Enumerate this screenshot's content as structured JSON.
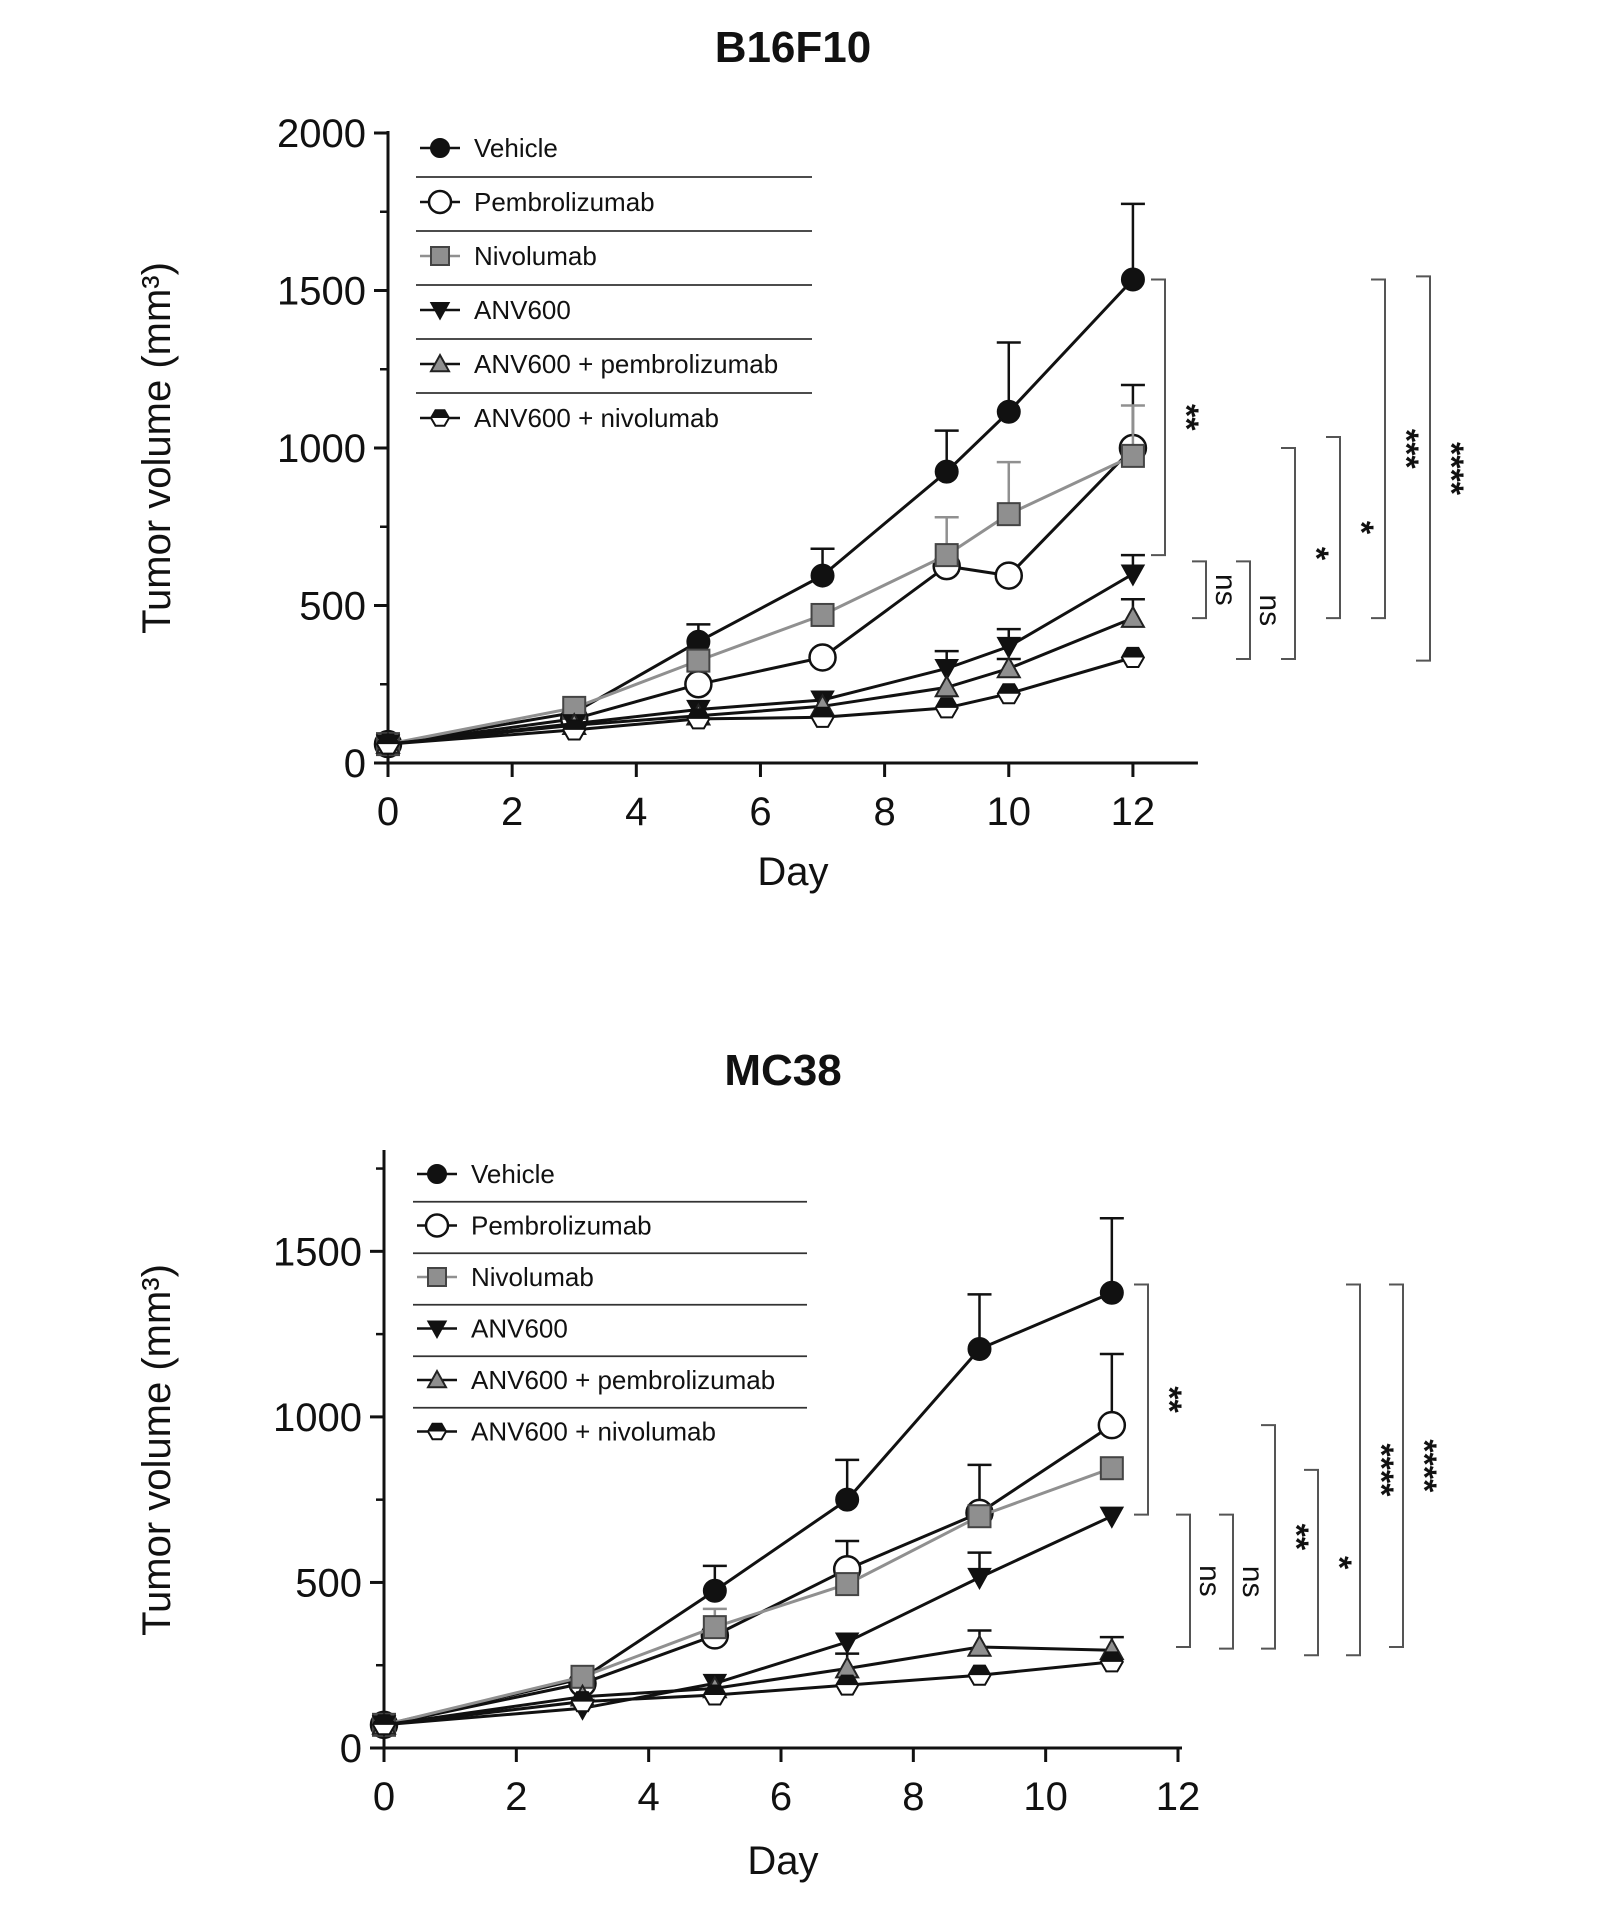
{
  "chart_data": [
    {
      "type": "line",
      "title": "B16F10",
      "xlabel": "Day",
      "ylabel": "Tumor volume (mm³)",
      "xlim": [
        0,
        13
      ],
      "ylim": [
        0,
        2000
      ],
      "xticks": [
        0,
        2,
        4,
        6,
        8,
        10,
        12
      ],
      "yticks": [
        0,
        500,
        1000,
        1500,
        2000
      ],
      "legend_position": "top-left",
      "series": [
        {
          "name": "Vehicle",
          "marker": "circle-filled",
          "color": "#111111",
          "x": [
            0,
            3,
            5,
            7,
            9,
            10,
            12
          ],
          "y": [
            60,
            160,
            385,
            595,
            925,
            1115,
            1535
          ],
          "err": [
            0,
            0,
            55,
            85,
            130,
            220,
            240
          ]
        },
        {
          "name": "Pembrolizumab",
          "marker": "circle-open",
          "color": "#111111",
          "x": [
            0,
            3,
            5,
            7,
            9,
            10,
            12
          ],
          "y": [
            60,
            140,
            250,
            335,
            625,
            595,
            1000
          ],
          "err": [
            0,
            0,
            0,
            0,
            0,
            0,
            200
          ]
        },
        {
          "name": "Nivolumab",
          "marker": "square-gray",
          "color": "#909090",
          "x": [
            0,
            3,
            5,
            7,
            9,
            10,
            12
          ],
          "y": [
            60,
            175,
            325,
            470,
            660,
            790,
            975
          ],
          "err": [
            0,
            0,
            0,
            0,
            120,
            165,
            160
          ]
        },
        {
          "name": "ANV600",
          "marker": "triangle-down-filled",
          "color": "#111111",
          "x": [
            0,
            3,
            5,
            7,
            9,
            10,
            12
          ],
          "y": [
            60,
            125,
            170,
            200,
            300,
            370,
            600
          ],
          "err": [
            0,
            0,
            0,
            0,
            55,
            55,
            60
          ]
        },
        {
          "name": "ANV600 + pembrolizumab",
          "marker": "triangle-up-gray",
          "color": "#111111",
          "x": [
            0,
            3,
            5,
            7,
            9,
            10,
            12
          ],
          "y": [
            60,
            120,
            150,
            180,
            240,
            300,
            460
          ],
          "err": [
            0,
            0,
            0,
            0,
            0,
            30,
            60
          ]
        },
        {
          "name": "ANV600 + nivolumab",
          "marker": "hexagon-half",
          "color": "#111111",
          "x": [
            0,
            3,
            5,
            7,
            9,
            10,
            12
          ],
          "y": [
            60,
            105,
            140,
            145,
            175,
            220,
            335
          ],
          "err": [
            0,
            0,
            0,
            0,
            0,
            0,
            0
          ]
        }
      ],
      "significance": [
        {
          "label": "**",
          "from_value": 1535,
          "to_value": 660
        },
        {
          "label": "ns",
          "from_value": 640,
          "to_value": 460
        },
        {
          "label": "ns",
          "from_value": 640,
          "to_value": 330
        },
        {
          "label": "*",
          "from_value": 1000,
          "to_value": 330
        },
        {
          "label": "*",
          "from_value": 1035,
          "to_value": 460
        },
        {
          "label": "***",
          "from_value": 1535,
          "to_value": 460
        },
        {
          "label": "****",
          "from_value": 1545,
          "to_value": 325
        }
      ]
    },
    {
      "type": "line",
      "title": "MC38",
      "xlabel": "Day",
      "ylabel": "Tumor volume (mm³)",
      "xlim": [
        0,
        12
      ],
      "ylim": [
        0,
        1800
      ],
      "xticks": [
        0,
        2,
        4,
        6,
        8,
        10,
        12
      ],
      "yticks": [
        0,
        500,
        1000,
        1500
      ],
      "legend_position": "top-left",
      "series": [
        {
          "name": "Vehicle",
          "marker": "circle-filled",
          "color": "#111111",
          "x": [
            0,
            3,
            5,
            7,
            9,
            11
          ],
          "y": [
            70,
            210,
            475,
            750,
            1205,
            1375
          ],
          "err": [
            0,
            0,
            75,
            120,
            165,
            225
          ]
        },
        {
          "name": "Pembrolizumab",
          "marker": "circle-open",
          "color": "#111111",
          "x": [
            0,
            3,
            5,
            7,
            9,
            11
          ],
          "y": [
            70,
            195,
            340,
            540,
            710,
            975
          ],
          "err": [
            0,
            0,
            0,
            85,
            145,
            215
          ]
        },
        {
          "name": "Nivolumab",
          "marker": "square-gray",
          "color": "#909090",
          "x": [
            0,
            3,
            5,
            7,
            9,
            11
          ],
          "y": [
            70,
            215,
            365,
            495,
            700,
            845
          ],
          "err": [
            0,
            0,
            55,
            0,
            0,
            0
          ]
        },
        {
          "name": "ANV600",
          "marker": "triangle-down-filled",
          "color": "#111111",
          "x": [
            0,
            3,
            5,
            7,
            9,
            11
          ],
          "y": [
            70,
            120,
            195,
            320,
            515,
            700
          ],
          "err": [
            0,
            0,
            0,
            0,
            75,
            0
          ]
        },
        {
          "name": "ANV600 + pembrolizumab",
          "marker": "triangle-up-gray",
          "color": "#111111",
          "x": [
            0,
            3,
            5,
            7,
            9,
            11
          ],
          "y": [
            70,
            155,
            180,
            240,
            305,
            295
          ],
          "err": [
            0,
            0,
            0,
            45,
            50,
            40
          ]
        },
        {
          "name": "ANV600 + nivolumab",
          "marker": "hexagon-half",
          "color": "#111111",
          "x": [
            0,
            3,
            5,
            7,
            9,
            11
          ],
          "y": [
            70,
            140,
            160,
            190,
            220,
            260
          ],
          "err": [
            0,
            0,
            0,
            0,
            0,
            0
          ]
        }
      ],
      "significance": [
        {
          "label": "**",
          "from_value": 1400,
          "to_value": 705
        },
        {
          "label": "ns",
          "from_value": 705,
          "to_value": 305
        },
        {
          "label": "ns",
          "from_value": 705,
          "to_value": 300
        },
        {
          "label": "**",
          "from_value": 975,
          "to_value": 300
        },
        {
          "label": "*",
          "from_value": 840,
          "to_value": 280
        },
        {
          "label": "****",
          "from_value": 1400,
          "to_value": 280
        },
        {
          "label": "****",
          "from_value": 1400,
          "to_value": 305
        }
      ]
    }
  ]
}
